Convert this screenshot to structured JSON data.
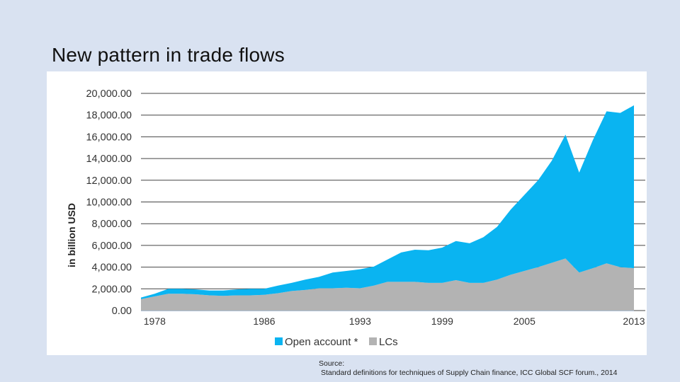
{
  "slide": {
    "title": "New pattern in trade flows"
  },
  "source": {
    "label": "Source:",
    "text": "Standard definitions for techniques of Supply Chain finance, ICC Global SCF forum., 2014"
  },
  "colors": {
    "open_account": "#0ab4f1",
    "lcs": "#b3b3b3",
    "grid": "#444444",
    "background": "#d9e2f1"
  },
  "chart_data": {
    "type": "area",
    "stacked": true,
    "title": "",
    "xlabel": "",
    "ylabel": "in billion USD",
    "ylim": [
      0,
      20000
    ],
    "yticks": [
      "0.00",
      "2,000.00",
      "4,000.00",
      "6,000.00",
      "8,000.00",
      "10,000.00",
      "12,000.00",
      "14,000.00",
      "16,000.00",
      "18,000.00",
      "20,000.00"
    ],
    "x_tick_labels": [
      "1978",
      "1986",
      "1993",
      "1999",
      "2005",
      "2013"
    ],
    "x": [
      1977,
      1978,
      1979,
      1980,
      1981,
      1982,
      1983,
      1984,
      1985,
      1986,
      1987,
      1988,
      1989,
      1990,
      1991,
      1992,
      1993,
      1994,
      1995,
      1996,
      1997,
      1998,
      1999,
      2000,
      2001,
      2002,
      2003,
      2004,
      2005,
      2006,
      2007,
      2008,
      2009,
      2010,
      2011,
      2012,
      2013
    ],
    "series": [
      {
        "name": "LCs",
        "color": "#b3b3b3",
        "values": [
          1050,
          1300,
          1550,
          1550,
          1500,
          1400,
          1350,
          1400,
          1400,
          1450,
          1600,
          1800,
          1900,
          2050,
          2050,
          2100,
          2050,
          2300,
          2650,
          2650,
          2650,
          2550,
          2550,
          2800,
          2550,
          2550,
          2850,
          3300,
          3650,
          4000,
          4400,
          4800,
          3500,
          3900,
          4350,
          4000,
          3900
        ]
      },
      {
        "name": "Open account *",
        "color": "#0ab4f1",
        "values": [
          150,
          250,
          450,
          450,
          450,
          450,
          500,
          550,
          600,
          550,
          700,
          750,
          950,
          1050,
          1450,
          1550,
          1750,
          1750,
          2050,
          2700,
          2950,
          3000,
          3250,
          3600,
          3650,
          4200,
          4850,
          6000,
          7000,
          8000,
          9400,
          11400,
          9200,
          11800,
          14000,
          14200,
          15000
        ]
      }
    ],
    "legend": {
      "placement": "bottom-center",
      "entries": [
        "Open account *",
        "LCs"
      ]
    },
    "grid": true
  }
}
